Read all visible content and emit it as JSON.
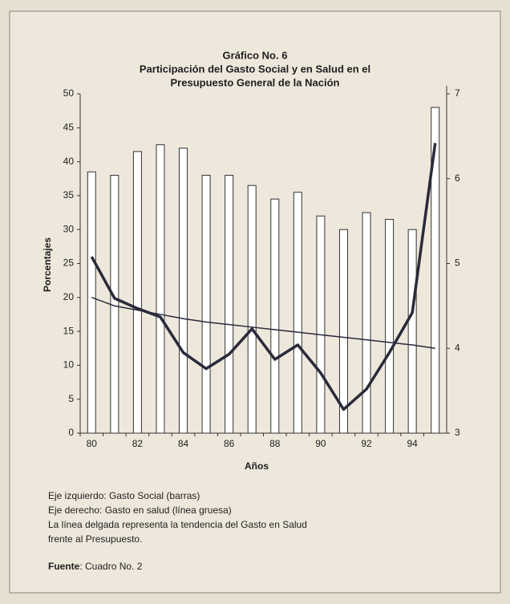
{
  "chart_data": {
    "type": "bar",
    "title": [
      "Gráfico No. 6",
      "Participación del Gasto Social y en Salud en el",
      "Presupuesto General de la Nación"
    ],
    "ylabel": "Porcentajes",
    "xlabel": "Años",
    "categories": [
      "80",
      null,
      "82",
      null,
      "84",
      null,
      "86",
      null,
      "88",
      null,
      "90",
      null,
      "92",
      null,
      "94",
      null
    ],
    "ylim": [
      0,
      50
    ],
    "yticks": [
      0,
      5,
      10,
      15,
      20,
      25,
      30,
      35,
      40,
      45,
      50
    ],
    "y2lim": [
      3,
      7
    ],
    "y2ticks": [
      3,
      4,
      5,
      6,
      7
    ],
    "series": [
      {
        "type": "bar",
        "color": "#ffffff",
        "values": [
          38.5,
          38,
          41.5,
          42.5,
          42,
          38,
          38,
          36.5,
          34.5,
          35.5,
          32,
          30,
          32.5,
          31.5,
          30,
          48
        ]
      },
      {
        "type": "line",
        "axis": "y2",
        "color": "#2a2a3a",
        "values": [
          5.08,
          4.59,
          4.47,
          4.37,
          3.95,
          3.76,
          3.93,
          4.23,
          3.87,
          4.04,
          3.71,
          3.28,
          3.52,
          3.95,
          4.42,
          6.42
        ]
      },
      {
        "type": "line",
        "axis": "y2",
        "color": "#2a2a3a",
        "values": [
          4.6,
          4.5,
          4.45,
          4.4,
          4.35,
          4.31,
          4.28,
          4.25,
          4.22,
          4.19,
          4.16,
          4.13,
          4.1,
          4.07,
          4.04,
          4.0
        ]
      }
    ],
    "notes": [
      "Eje izquierdo: Gasto Social (barras)",
      "Eje derecho:  Gasto en salud (línea gruesa)",
      "La línea delgada representa la tendencia del Gasto en Salud",
      "frente al  Presupuesto."
    ],
    "source_label": "Fuente",
    "source": ": Cuadro No. 2"
  }
}
